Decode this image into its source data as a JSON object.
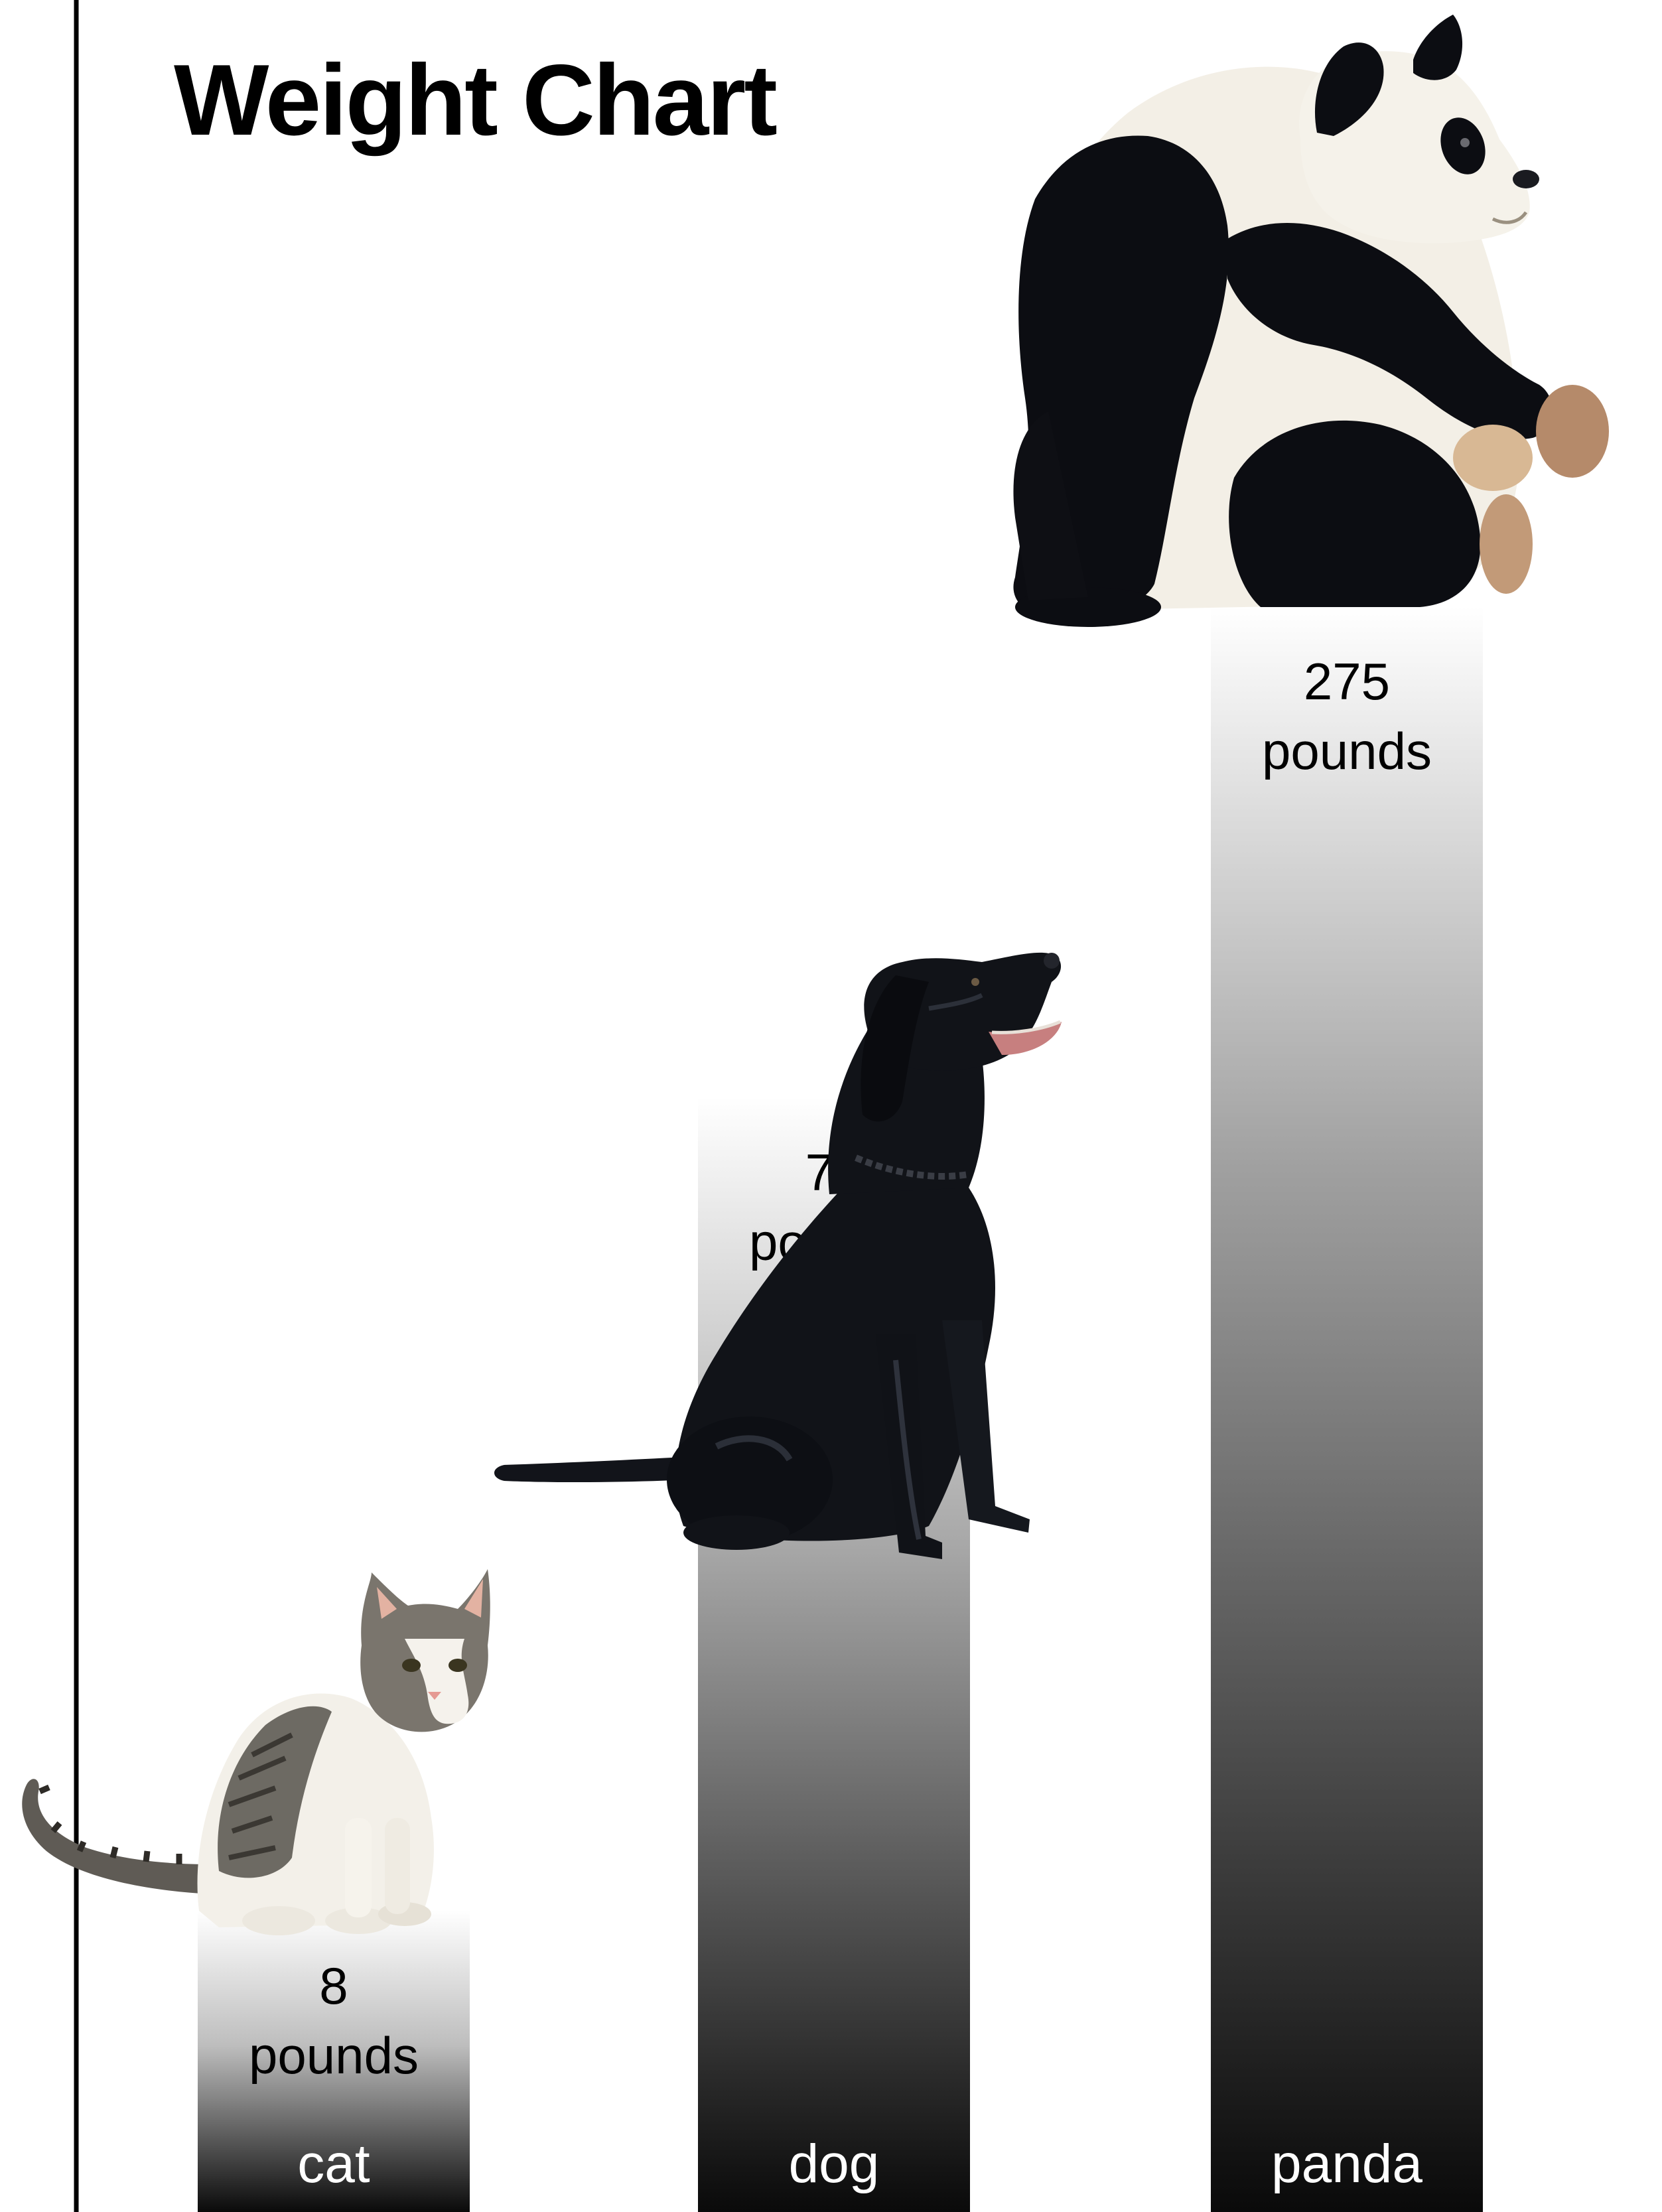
{
  "chart_data": {
    "type": "bar",
    "title": "Weight Chart",
    "categories": [
      "cat",
      "dog",
      "panda"
    ],
    "values": [
      8,
      75,
      275
    ],
    "value_labels": [
      "8",
      "75",
      "275"
    ],
    "unit_label": "pounds",
    "xlabel": "",
    "ylabel": "",
    "grid": false,
    "legend": "none",
    "bar_fill": "vertical gradient white to black",
    "illustrations": [
      "cat-image",
      "dog-image",
      "panda-image"
    ]
  },
  "colors": {
    "background": "#ffffff",
    "axis": "#000000",
    "bar_top": "#ffffff",
    "bar_bottom": "#0a0a0a",
    "cat_white": "#f4f1ea",
    "cat_tabby": "#6e6a63",
    "dog_black": "#111318",
    "panda_black": "#0c0d12",
    "panda_white": "#f3efe6"
  }
}
